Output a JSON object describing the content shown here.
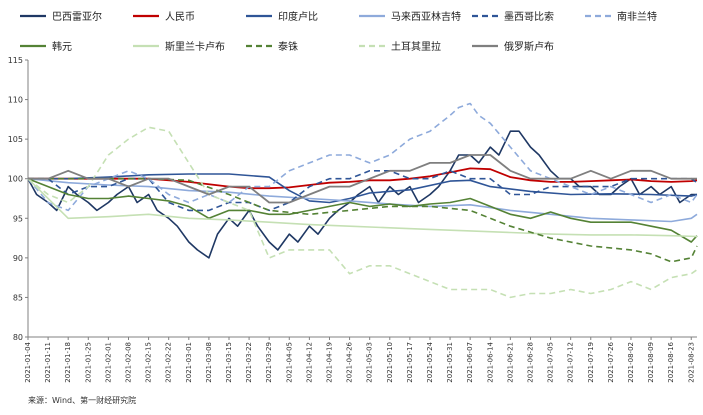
{
  "chart_data": {
    "type": "line",
    "title": "",
    "xlabel": "",
    "ylabel": "",
    "ylim": [
      80,
      115
    ],
    "yticks": [
      80,
      85,
      90,
      95,
      100,
      105,
      110,
      115
    ],
    "grid": false,
    "legend_position": "top",
    "x_start": "2021-01-04",
    "x_end": "2021-08-25",
    "xticks": [
      "2021-01-04",
      "2021-01-11",
      "2021-01-18",
      "2021-01-25",
      "2021-02-01",
      "2021-02-08",
      "2021-02-15",
      "2021-02-22",
      "2021-03-01",
      "2021-03-08",
      "2021-03-15",
      "2021-03-22",
      "2021-03-29",
      "2021-04-05",
      "2021-04-12",
      "2021-04-19",
      "2021-04-26",
      "2021-05-03",
      "2021-05-10",
      "2021-05-17",
      "2021-05-24",
      "2021-05-31",
      "2021-06-07",
      "2021-06-14",
      "2021-06-21",
      "2021-06-28",
      "2021-07-05",
      "2021-07-12",
      "2021-07-19",
      "2021-07-26",
      "2021-08-02",
      "2021-08-09",
      "2021-08-16",
      "2021-08-23"
    ],
    "series": [
      {
        "name": "巴西雷亚尔",
        "color": "#1f3864",
        "dash": "solid",
        "width": 1.6,
        "x": [
          "2021-01-04",
          "2021-01-07",
          "2021-01-11",
          "2021-01-14",
          "2021-01-18",
          "2021-01-21",
          "2021-01-25",
          "2021-01-28",
          "2021-02-01",
          "2021-02-04",
          "2021-02-08",
          "2021-02-11",
          "2021-02-15",
          "2021-02-18",
          "2021-02-22",
          "2021-02-25",
          "2021-03-01",
          "2021-03-04",
          "2021-03-08",
          "2021-03-11",
          "2021-03-15",
          "2021-03-18",
          "2021-03-22",
          "2021-03-25",
          "2021-03-29",
          "2021-04-01",
          "2021-04-05",
          "2021-04-08",
          "2021-04-12",
          "2021-04-15",
          "2021-04-19",
          "2021-04-22",
          "2021-04-26",
          "2021-04-29",
          "2021-05-03",
          "2021-05-06",
          "2021-05-10",
          "2021-05-13",
          "2021-05-17",
          "2021-05-20",
          "2021-05-24",
          "2021-05-27",
          "2021-05-31",
          "2021-06-03",
          "2021-06-07",
          "2021-06-10",
          "2021-06-14",
          "2021-06-17",
          "2021-06-21",
          "2021-06-24",
          "2021-06-28",
          "2021-07-01",
          "2021-07-05",
          "2021-07-08",
          "2021-07-12",
          "2021-07-15",
          "2021-07-19",
          "2021-07-22",
          "2021-07-26",
          "2021-07-29",
          "2021-08-02",
          "2021-08-05",
          "2021-08-09",
          "2021-08-12",
          "2021-08-16",
          "2021-08-19",
          "2021-08-23",
          "2021-08-25"
        ],
        "values": [
          100,
          98,
          97,
          96,
          99,
          98,
          97,
          96,
          97,
          98,
          99,
          97,
          98,
          96,
          95,
          94,
          92,
          91,
          90,
          93,
          95,
          94,
          96,
          94,
          92,
          91,
          93,
          92,
          94,
          93,
          95,
          96,
          97,
          98,
          99,
          97,
          99,
          98,
          99,
          97,
          98,
          99,
          101,
          103,
          103,
          102,
          104,
          103,
          106,
          106,
          104,
          103,
          101,
          100,
          100,
          99,
          99,
          98,
          98,
          99,
          100,
          98,
          99,
          98,
          99,
          97,
          98,
          98
        ]
      },
      {
        "name": "人民币",
        "color": "#c00000",
        "dash": "solid",
        "width": 1.8,
        "x": [
          "2021-01-04",
          "2021-01-18",
          "2021-02-01",
          "2021-02-15",
          "2021-03-01",
          "2021-03-15",
          "2021-03-22",
          "2021-03-29",
          "2021-04-05",
          "2021-04-12",
          "2021-04-19",
          "2021-04-26",
          "2021-05-03",
          "2021-05-10",
          "2021-05-17",
          "2021-05-24",
          "2021-05-31",
          "2021-06-07",
          "2021-06-14",
          "2021-06-21",
          "2021-06-28",
          "2021-07-05",
          "2021-07-12",
          "2021-07-19",
          "2021-07-26",
          "2021-08-02",
          "2021-08-09",
          "2021-08-16",
          "2021-08-23",
          "2021-08-25"
        ],
        "values": [
          100,
          100,
          100,
          100,
          99.6,
          99,
          98.8,
          98.8,
          98.9,
          99.2,
          99.5,
          99.6,
          99.8,
          99.8,
          100,
          100.3,
          100.8,
          101.3,
          101.2,
          100.2,
          99.8,
          99.6,
          99.6,
          99.7,
          99.8,
          99.9,
          99.7,
          99.6,
          99.7,
          99.8
        ]
      },
      {
        "name": "印度卢比",
        "color": "#2f5597",
        "dash": "solid",
        "width": 1.6,
        "x": [
          "2021-01-04",
          "2021-01-18",
          "2021-02-01",
          "2021-02-15",
          "2021-03-01",
          "2021-03-15",
          "2021-03-29",
          "2021-04-05",
          "2021-04-12",
          "2021-04-19",
          "2021-04-26",
          "2021-05-03",
          "2021-05-17",
          "2021-05-31",
          "2021-06-07",
          "2021-06-14",
          "2021-06-28",
          "2021-07-12",
          "2021-07-26",
          "2021-08-09",
          "2021-08-23",
          "2021-08-25"
        ],
        "values": [
          100,
          100,
          100.2,
          100.5,
          100.6,
          100.6,
          100.2,
          98.5,
          97.2,
          97.0,
          97.5,
          98.2,
          98.6,
          99.7,
          99.8,
          99.0,
          98.4,
          98.0,
          98.1,
          98.0,
          97.8,
          98.0
        ]
      },
      {
        "name": "马来西亚林吉特",
        "color": "#8eaadb",
        "dash": "solid",
        "width": 1.6,
        "x": [
          "2021-01-04",
          "2021-01-18",
          "2021-02-01",
          "2021-02-15",
          "2021-03-01",
          "2021-03-15",
          "2021-03-29",
          "2021-04-12",
          "2021-04-26",
          "2021-05-10",
          "2021-05-24",
          "2021-06-07",
          "2021-06-21",
          "2021-07-05",
          "2021-07-19",
          "2021-08-02",
          "2021-08-16",
          "2021-08-23",
          "2021-08-25"
        ],
        "values": [
          100,
          99.5,
          99.2,
          99.0,
          98.5,
          98.3,
          97.8,
          97.5,
          97.2,
          96.8,
          96.5,
          96.7,
          96.0,
          95.5,
          95.0,
          94.8,
          94.6,
          95.0,
          95.5
        ]
      },
      {
        "name": "墨西哥比索",
        "color": "#2f5597",
        "dash": "dash",
        "width": 1.6,
        "x": [
          "2021-01-04",
          "2021-01-11",
          "2021-01-18",
          "2021-01-25",
          "2021-02-01",
          "2021-02-08",
          "2021-02-15",
          "2021-02-22",
          "2021-03-01",
          "2021-03-08",
          "2021-03-15",
          "2021-03-22",
          "2021-03-29",
          "2021-04-05",
          "2021-04-12",
          "2021-04-19",
          "2021-04-26",
          "2021-05-03",
          "2021-05-10",
          "2021-05-17",
          "2021-05-24",
          "2021-05-31",
          "2021-06-07",
          "2021-06-14",
          "2021-06-21",
          "2021-06-28",
          "2021-07-05",
          "2021-07-12",
          "2021-07-19",
          "2021-07-26",
          "2021-08-02",
          "2021-08-09",
          "2021-08-16",
          "2021-08-23",
          "2021-08-25"
        ],
        "values": [
          100,
          100,
          98,
          99,
          99,
          100,
          100,
          97,
          96,
          96,
          97,
          97,
          96,
          97,
          99,
          100,
          100,
          101,
          101,
          100,
          100,
          101,
          100,
          100,
          98,
          98,
          99,
          99,
          99,
          99,
          100,
          100,
          100,
          100,
          99.5
        ]
      },
      {
        "name": "南非兰特",
        "color": "#8eaadb",
        "dash": "dash",
        "width": 1.6,
        "x": [
          "2021-01-04",
          "2021-01-11",
          "2021-01-18",
          "2021-01-25",
          "2021-02-01",
          "2021-02-08",
          "2021-02-15",
          "2021-02-22",
          "2021-03-01",
          "2021-03-08",
          "2021-03-15",
          "2021-03-22",
          "2021-03-29",
          "2021-04-05",
          "2021-04-12",
          "2021-04-19",
          "2021-04-26",
          "2021-05-03",
          "2021-05-10",
          "2021-05-17",
          "2021-05-24",
          "2021-05-31",
          "2021-06-03",
          "2021-06-07",
          "2021-06-10",
          "2021-06-14",
          "2021-06-21",
          "2021-06-28",
          "2021-07-05",
          "2021-07-12",
          "2021-07-19",
          "2021-07-26",
          "2021-08-02",
          "2021-08-09",
          "2021-08-16",
          "2021-08-23",
          "2021-08-25"
        ],
        "values": [
          100,
          97,
          96,
          99,
          100,
          101,
          100,
          98,
          97,
          98,
          97,
          99,
          99,
          101,
          102,
          103,
          103,
          102,
          103,
          105,
          106,
          108,
          109,
          109.5,
          108,
          107,
          104,
          101,
          100,
          99,
          98,
          99,
          98,
          97,
          98,
          97,
          98
        ]
      },
      {
        "name": "韩元",
        "color": "#548235",
        "dash": "solid",
        "width": 1.6,
        "x": [
          "2021-01-04",
          "2021-01-11",
          "2021-01-18",
          "2021-01-25",
          "2021-02-01",
          "2021-02-08",
          "2021-02-15",
          "2021-02-22",
          "2021-03-01",
          "2021-03-08",
          "2021-03-15",
          "2021-03-22",
          "2021-03-29",
          "2021-04-05",
          "2021-04-12",
          "2021-04-19",
          "2021-04-26",
          "2021-05-03",
          "2021-05-10",
          "2021-05-17",
          "2021-05-24",
          "2021-05-31",
          "2021-06-07",
          "2021-06-14",
          "2021-06-21",
          "2021-06-28",
          "2021-07-05",
          "2021-07-12",
          "2021-07-19",
          "2021-07-26",
          "2021-08-02",
          "2021-08-09",
          "2021-08-16",
          "2021-08-23",
          "2021-08-25"
        ],
        "values": [
          100,
          99,
          98,
          97.5,
          97.5,
          97.8,
          97.5,
          97.2,
          96.5,
          95,
          96,
          96,
          95.5,
          95.5,
          96,
          96.5,
          97,
          96.5,
          96.8,
          96.5,
          96.8,
          97,
          97.5,
          96.5,
          95.5,
          95,
          95.8,
          95,
          94.5,
          94.5,
          94.5,
          94,
          93.5,
          92,
          92.8
        ]
      },
      {
        "name": "斯里兰卡卢布",
        "color": "#c5e0b4",
        "dash": "solid",
        "width": 1.6,
        "x": [
          "2021-01-04",
          "2021-01-18",
          "2021-02-01",
          "2021-02-15",
          "2021-03-01",
          "2021-03-15",
          "2021-03-29",
          "2021-04-12",
          "2021-04-26",
          "2021-05-10",
          "2021-05-24",
          "2021-06-07",
          "2021-06-21",
          "2021-07-05",
          "2021-07-19",
          "2021-08-02",
          "2021-08-16",
          "2021-08-25"
        ],
        "values": [
          100,
          95,
          95.2,
          95.5,
          95.0,
          94.8,
          94.5,
          94.2,
          94.0,
          93.8,
          93.6,
          93.4,
          93.2,
          93.0,
          92.9,
          92.9,
          92.8,
          92.7
        ]
      },
      {
        "name": "泰铢",
        "color": "#548235",
        "dash": "dash",
        "width": 1.6,
        "x": [
          "2021-01-04",
          "2021-01-18",
          "2021-02-01",
          "2021-02-15",
          "2021-03-01",
          "2021-03-15",
          "2021-03-29",
          "2021-04-12",
          "2021-04-26",
          "2021-05-10",
          "2021-05-24",
          "2021-06-07",
          "2021-06-21",
          "2021-07-05",
          "2021-07-19",
          "2021-08-02",
          "2021-08-09",
          "2021-08-16",
          "2021-08-23",
          "2021-08-25"
        ],
        "values": [
          100,
          100,
          100,
          100,
          99.8,
          98,
          96,
          95.5,
          96,
          96.5,
          96.5,
          96,
          94,
          92.5,
          91.5,
          91,
          90.5,
          89.5,
          90,
          91.5
        ]
      },
      {
        "name": "土耳其里拉",
        "color": "#c5e0b4",
        "dash": "dash",
        "width": 1.6,
        "x": [
          "2021-01-04",
          "2021-01-11",
          "2021-01-18",
          "2021-01-25",
          "2021-02-01",
          "2021-02-08",
          "2021-02-15",
          "2021-02-22",
          "2021-03-01",
          "2021-03-08",
          "2021-03-15",
          "2021-03-22",
          "2021-03-29",
          "2021-04-05",
          "2021-04-12",
          "2021-04-19",
          "2021-04-26",
          "2021-05-03",
          "2021-05-10",
          "2021-05-17",
          "2021-05-24",
          "2021-05-31",
          "2021-06-07",
          "2021-06-14",
          "2021-06-21",
          "2021-06-28",
          "2021-07-05",
          "2021-07-12",
          "2021-07-19",
          "2021-07-26",
          "2021-08-02",
          "2021-08-09",
          "2021-08-16",
          "2021-08-23",
          "2021-08-25"
        ],
        "values": [
          100,
          98,
          97,
          99,
          103,
          105,
          106.5,
          106,
          102,
          98,
          97,
          96,
          90,
          91,
          91,
          91,
          88,
          89,
          89,
          88,
          87,
          86,
          86,
          86,
          85,
          85.5,
          85.5,
          86,
          85.5,
          86,
          87,
          86,
          87.5,
          88,
          88.5
        ]
      },
      {
        "name": "俄罗斯卢布",
        "color": "#7f7f7f",
        "dash": "solid",
        "width": 1.8,
        "x": [
          "2021-01-04",
          "2021-01-11",
          "2021-01-18",
          "2021-01-25",
          "2021-02-01",
          "2021-02-08",
          "2021-02-15",
          "2021-02-22",
          "2021-03-01",
          "2021-03-08",
          "2021-03-15",
          "2021-03-22",
          "2021-03-29",
          "2021-04-05",
          "2021-04-12",
          "2021-04-19",
          "2021-04-26",
          "2021-05-03",
          "2021-05-10",
          "2021-05-17",
          "2021-05-24",
          "2021-05-31",
          "2021-06-07",
          "2021-06-14",
          "2021-06-21",
          "2021-06-28",
          "2021-07-05",
          "2021-07-12",
          "2021-07-19",
          "2021-07-26",
          "2021-08-02",
          "2021-08-09",
          "2021-08-16",
          "2021-08-23",
          "2021-08-25"
        ],
        "values": [
          100,
          100,
          101,
          100,
          100,
          99,
          100,
          100,
          99,
          98,
          99,
          99,
          97,
          97,
          98,
          99,
          99,
          100,
          101,
          101,
          102,
          102,
          103,
          103,
          101,
          100,
          100,
          100,
          101,
          100,
          101,
          101,
          100,
          100,
          100
        ]
      }
    ]
  },
  "source_text": "来源：Wind、第一财经研究院"
}
